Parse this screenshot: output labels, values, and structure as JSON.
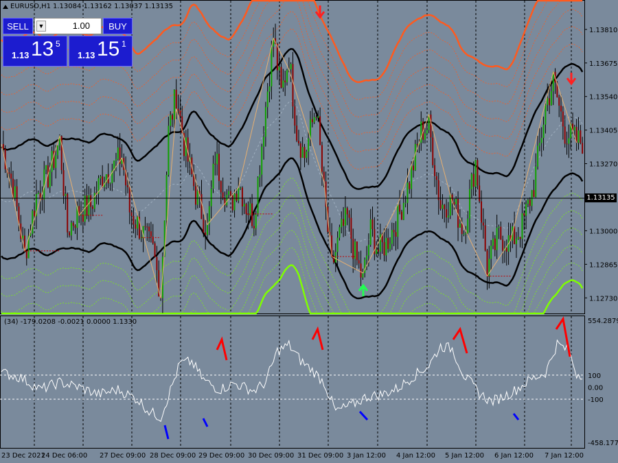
{
  "chart_title": {
    "symbol_tf": "EURUSD,H1",
    "ohlc": "1.13084 1.13162 1.13037 1.13135"
  },
  "trade_panel": {
    "sell_label": "SELL",
    "buy_label": "BUY",
    "lot_value": "1.00",
    "sell_price": {
      "small": "1.13",
      "big": "13",
      "sup": "5"
    },
    "buy_price": {
      "small": "1.13",
      "big": "15",
      "sup": "1"
    }
  },
  "current_price": "1.13135",
  "indicator_label": "(34) -179.0208 -0.0021 0.0000 1.1330",
  "colors": {
    "background": "#7a8a9c",
    "bull": "#10a000",
    "bear": "#8b0000",
    "upper_band": "#ff5a1e",
    "lower_band": "#7fff00",
    "mid_band": "#000000",
    "zigzag": "#e8b070",
    "osc": "#ffffff",
    "osc_high": "#ff0000",
    "osc_low": "#0000ff",
    "arrow_down": "#ff2020",
    "arrow_up": "#00ff40"
  },
  "chart_data": {
    "type": "candlestick",
    "price_axis_labels": [
      "1.13810",
      "1.13675",
      "1.13540",
      "1.13405",
      "1.13270",
      "1.13135",
      "1.13000",
      "1.12865",
      "1.12730"
    ],
    "osc_axis_labels": [
      "554.2879",
      "100",
      "0.00",
      "-100",
      "-458.1777"
    ],
    "time_labels": [
      "23 Dec 2021",
      "24 Dec 06:00",
      "27 Dec 09:00",
      "28 Dec 09:00",
      "29 Dec 09:00",
      "30 Dec 09:00",
      "31 Dec 09:00",
      "3 Jan 12:00",
      "4 Jan 12:00",
      "5 Jan 12:00",
      "6 Jan 12:00",
      "7 Jan 12:00"
    ],
    "price_range": [
      1.1267,
      1.1392
    ],
    "osc_range": [
      -458.1777,
      554.2879
    ],
    "close_anchors": [
      [
        0,
        1.1335
      ],
      [
        6,
        1.1318
      ],
      [
        12,
        1.129
      ],
      [
        18,
        1.1314
      ],
      [
        24,
        1.1322
      ],
      [
        30,
        1.1336
      ],
      [
        34,
        1.13
      ],
      [
        40,
        1.1308
      ],
      [
        46,
        1.131
      ],
      [
        52,
        1.1322
      ],
      [
        58,
        1.1326
      ],
      [
        62,
        1.133
      ],
      [
        66,
        1.1308
      ],
      [
        72,
        1.13
      ],
      [
        78,
        1.1292
      ],
      [
        82,
        1.1275
      ],
      [
        86,
        1.134
      ],
      [
        90,
        1.1355
      ],
      [
        94,
        1.1335
      ],
      [
        100,
        1.1315
      ],
      [
        106,
        1.13
      ],
      [
        110,
        1.133
      ],
      [
        114,
        1.1318
      ],
      [
        118,
        1.131
      ],
      [
        122,
        1.132
      ],
      [
        126,
        1.131
      ],
      [
        130,
        1.1305
      ],
      [
        136,
        1.135
      ],
      [
        140,
        1.1378
      ],
      [
        144,
        1.1355
      ],
      [
        148,
        1.137
      ],
      [
        152,
        1.134
      ],
      [
        156,
        1.133
      ],
      [
        162,
        1.135
      ],
      [
        166,
        1.1315
      ],
      [
        170,
        1.1285
      ],
      [
        174,
        1.1298
      ],
      [
        178,
        1.1305
      ],
      [
        182,
        1.129
      ],
      [
        186,
        1.128
      ],
      [
        190,
        1.13
      ],
      [
        194,
        1.1292
      ],
      [
        198,
        1.1295
      ],
      [
        204,
        1.1305
      ],
      [
        210,
        1.132
      ],
      [
        216,
        1.134
      ],
      [
        220,
        1.1342
      ],
      [
        226,
        1.131
      ],
      [
        232,
        1.1312
      ],
      [
        238,
        1.13
      ],
      [
        244,
        1.1328
      ],
      [
        250,
        1.1285
      ],
      [
        256,
        1.1298
      ],
      [
        262,
        1.1295
      ],
      [
        268,
        1.1302
      ],
      [
        274,
        1.1318
      ],
      [
        280,
        1.135
      ],
      [
        284,
        1.136
      ],
      [
        290,
        1.134
      ],
      [
        296,
        1.1336
      ]
    ],
    "osc_anchors": [
      [
        0,
        120
      ],
      [
        10,
        80
      ],
      [
        20,
        -20
      ],
      [
        30,
        40
      ],
      [
        40,
        0
      ],
      [
        50,
        -60
      ],
      [
        60,
        -20
      ],
      [
        70,
        -100
      ],
      [
        76,
        -200
      ],
      [
        82,
        -250
      ],
      [
        88,
        20
      ],
      [
        92,
        200
      ],
      [
        98,
        210
      ],
      [
        104,
        60
      ],
      [
        112,
        -20
      ],
      [
        120,
        30
      ],
      [
        130,
        -30
      ],
      [
        136,
        40
      ],
      [
        142,
        300
      ],
      [
        148,
        350
      ],
      [
        154,
        220
      ],
      [
        160,
        140
      ],
      [
        166,
        40
      ],
      [
        172,
        -200
      ],
      [
        180,
        -150
      ],
      [
        188,
        -80
      ],
      [
        196,
        -60
      ],
      [
        204,
        -10
      ],
      [
        212,
        90
      ],
      [
        220,
        180
      ],
      [
        226,
        340
      ],
      [
        232,
        320
      ],
      [
        238,
        100
      ],
      [
        246,
        -50
      ],
      [
        252,
        -120
      ],
      [
        258,
        -80
      ],
      [
        264,
        -30
      ],
      [
        272,
        60
      ],
      [
        280,
        120
      ],
      [
        286,
        360
      ],
      [
        292,
        300
      ],
      [
        296,
        110
      ]
    ],
    "osc_high_segments": [
      [
        316,
        510,
        330,
        525
      ],
      [
        455,
        495,
        470,
        510
      ],
      [
        660,
        495,
        680,
        515
      ],
      [
        810,
        480,
        830,
        520
      ]
    ],
    "osc_low_segments": [
      [
        240,
        620,
        245,
        640
      ],
      [
        296,
        610,
        302,
        622
      ],
      [
        524,
        600,
        535,
        612
      ],
      [
        748,
        603,
        755,
        612
      ]
    ]
  }
}
